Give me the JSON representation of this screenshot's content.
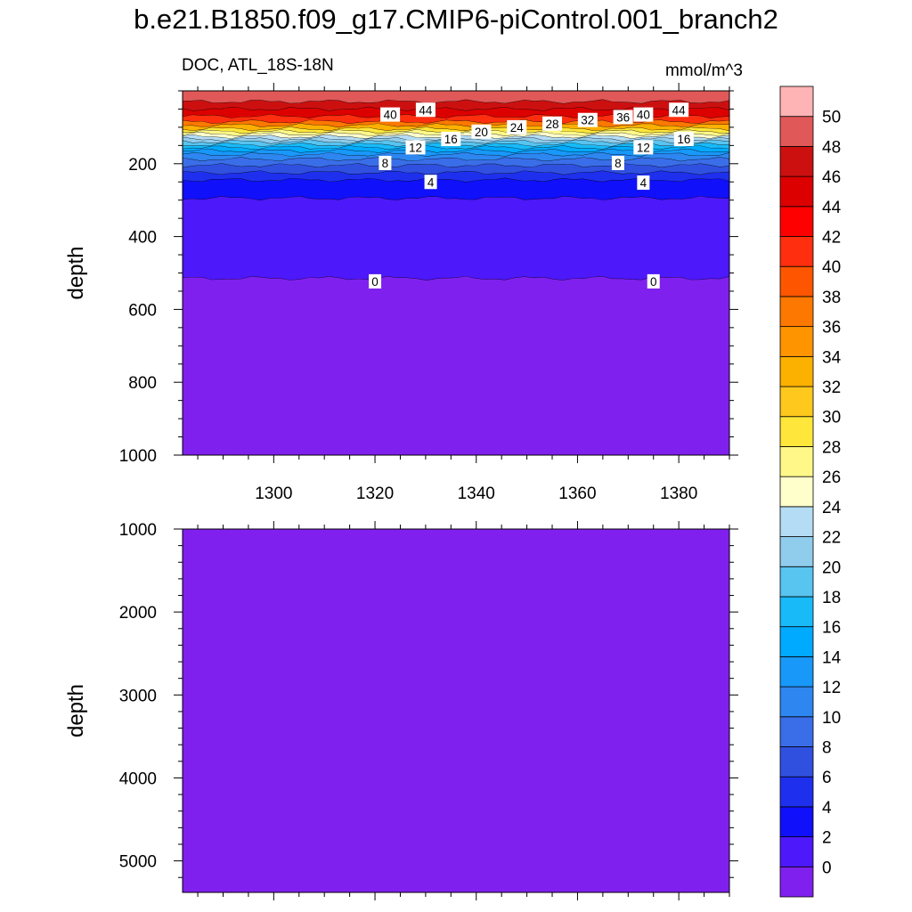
{
  "title": "b.e21.B1850.f09_g17.CMIP6-piControl.001_branch2",
  "subtitle": "DOC, ATL_18S-18N",
  "units": "mmol/m^3",
  "chart_data": {
    "type": "contour",
    "variable": "DOC",
    "region": "ATL_18S-18N",
    "x": {
      "label": "",
      "range": [
        1282,
        1390
      ],
      "ticks": [
        1300,
        1320,
        1340,
        1360,
        1380
      ],
      "minor_step": 5
    },
    "panels": [
      {
        "name": "upper",
        "ylabel": "depth",
        "yrange": [
          0,
          1000
        ],
        "yticks": [
          200,
          400,
          600,
          800,
          1000
        ],
        "y_minor_step": 50,
        "bands": [
          {
            "top": 0,
            "bottom": 30,
            "value": 49
          },
          {
            "top": 30,
            "bottom": 50,
            "value": 47
          },
          {
            "top": 50,
            "bottom": 70,
            "value": 44
          },
          {
            "top": 70,
            "bottom": 85,
            "value": 40
          },
          {
            "top": 85,
            "bottom": 95,
            "value": 36
          },
          {
            "top": 95,
            "bottom": 105,
            "value": 32
          },
          {
            "top": 105,
            "bottom": 112,
            "value": 29
          },
          {
            "top": 112,
            "bottom": 119,
            "value": 27
          },
          {
            "top": 119,
            "bottom": 126,
            "value": 25
          },
          {
            "top": 126,
            "bottom": 133,
            "value": 23
          },
          {
            "top": 133,
            "bottom": 140,
            "value": 21
          },
          {
            "top": 140,
            "bottom": 148,
            "value": 19
          },
          {
            "top": 148,
            "bottom": 156,
            "value": 17
          },
          {
            "top": 156,
            "bottom": 165,
            "value": 15
          },
          {
            "top": 165,
            "bottom": 175,
            "value": 13
          },
          {
            "top": 175,
            "bottom": 188,
            "value": 11
          },
          {
            "top": 188,
            "bottom": 205,
            "value": 9
          },
          {
            "top": 205,
            "bottom": 225,
            "value": 7
          },
          {
            "top": 225,
            "bottom": 245,
            "value": 5
          },
          {
            "top": 245,
            "bottom": 295,
            "value": 3
          },
          {
            "top": 295,
            "bottom": 515,
            "value": 1
          },
          {
            "top": 515,
            "bottom": 1000,
            "value": -1
          }
        ],
        "contour_labels": [
          {
            "x": 1323,
            "depth": 65,
            "text": "40"
          },
          {
            "x": 1330,
            "depth": 52,
            "text": "44"
          },
          {
            "x": 1373,
            "depth": 65,
            "text": "40"
          },
          {
            "x": 1380,
            "depth": 52,
            "text": "44"
          },
          {
            "x": 1369,
            "depth": 72,
            "text": "36"
          },
          {
            "x": 1362,
            "depth": 80,
            "text": "32"
          },
          {
            "x": 1355,
            "depth": 90,
            "text": "28"
          },
          {
            "x": 1348,
            "depth": 100,
            "text": "24"
          },
          {
            "x": 1341,
            "depth": 112,
            "text": "20"
          },
          {
            "x": 1335,
            "depth": 132,
            "text": "16"
          },
          {
            "x": 1381,
            "depth": 132,
            "text": "16"
          },
          {
            "x": 1328,
            "depth": 155,
            "text": "12"
          },
          {
            "x": 1373,
            "depth": 155,
            "text": "12"
          },
          {
            "x": 1322,
            "depth": 198,
            "text": "8"
          },
          {
            "x": 1368,
            "depth": 198,
            "text": "8"
          },
          {
            "x": 1331,
            "depth": 250,
            "text": "4"
          },
          {
            "x": 1373,
            "depth": 252,
            "text": "4"
          },
          {
            "x": 1320,
            "depth": 523,
            "text": "0"
          },
          {
            "x": 1375,
            "depth": 523,
            "text": "0"
          }
        ]
      },
      {
        "name": "lower",
        "ylabel": "depth",
        "yrange": [
          1000,
          5380
        ],
        "yticks": [
          1000,
          2000,
          3000,
          4000,
          5000
        ],
        "y_minor_step": 200,
        "bands": [
          {
            "top": 1000,
            "bottom": 5380,
            "value": -1
          }
        ],
        "contour_labels": []
      }
    ],
    "colorbar": {
      "levels": [
        0,
        2,
        4,
        6,
        8,
        10,
        12,
        14,
        16,
        18,
        20,
        22,
        24,
        26,
        28,
        30,
        32,
        34,
        36,
        38,
        40,
        42,
        44,
        46,
        48,
        50
      ],
      "colors": [
        "#8020ee",
        "#4d18fa",
        "#1010fa",
        "#1e30ee",
        "#3050e0",
        "#3a6ee8",
        "#2e86f0",
        "#1898f8",
        "#00aaff",
        "#18baf8",
        "#58c4f0",
        "#90ccec",
        "#b4dcf4",
        "#ffffcc",
        "#fff888",
        "#fee63a",
        "#fec81c",
        "#fcb000",
        "#fe9400",
        "#fc7800",
        "#fe5600",
        "#fe2e0e",
        "#fe0000",
        "#dc0000",
        "#cc1010",
        "#e05858",
        "#feb4b4"
      ]
    }
  }
}
